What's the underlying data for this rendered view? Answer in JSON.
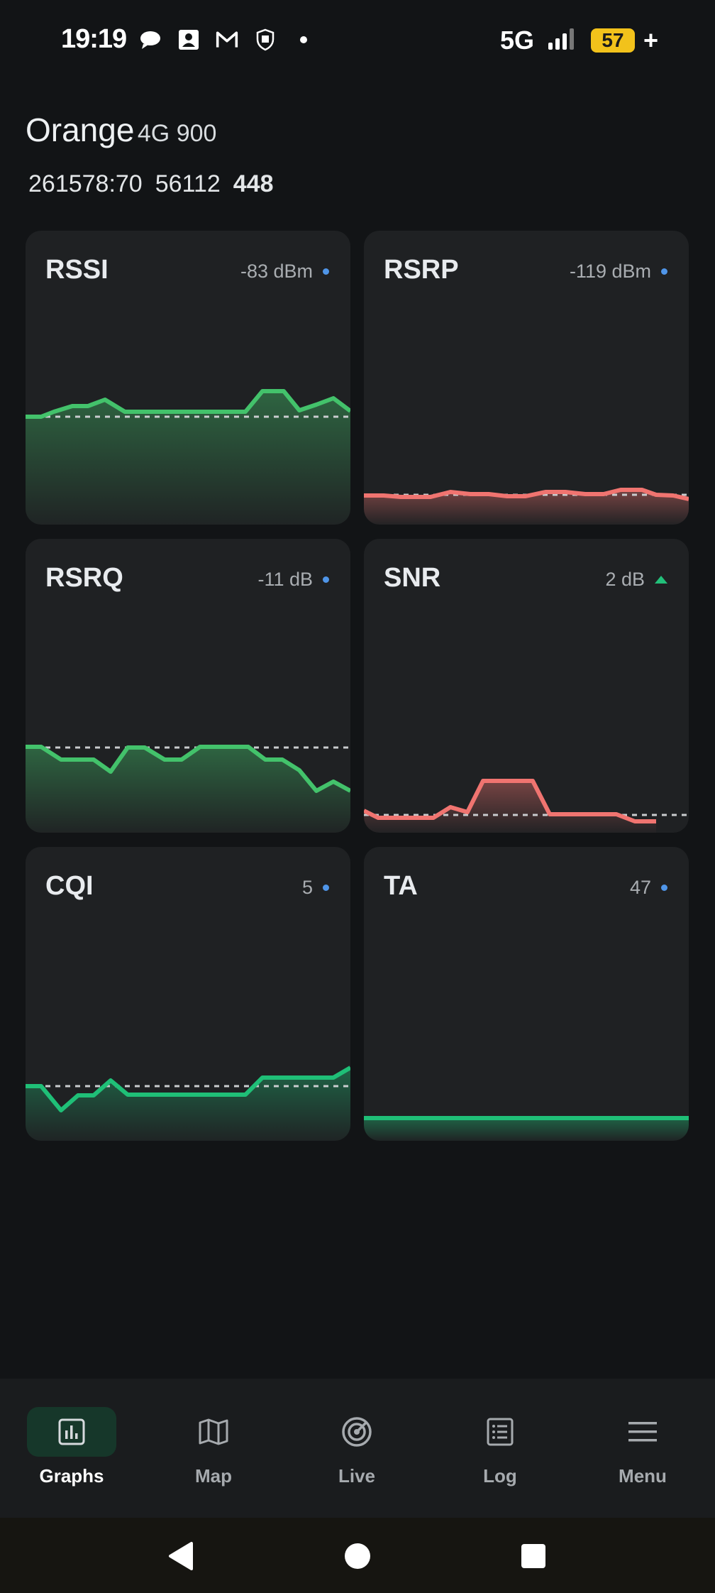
{
  "status_bar": {
    "time": "19:19",
    "network": "5G",
    "battery": "57",
    "icons": [
      "message-bubble-icon",
      "contact-card-icon",
      "gmail-icon",
      "privacy-icon",
      "dot-icon",
      "signal-icon",
      "battery-icon",
      "charging-plus-icon"
    ]
  },
  "header": {
    "carrier": "Orange",
    "tech": "4G 900",
    "cell_id": "261578:70",
    "tac": "56112",
    "pci": "448"
  },
  "cards": [
    {
      "key": "rssi",
      "title": "RSSI",
      "value": "-83 dBm",
      "indicator": "dot",
      "color": "#43c26b",
      "level": 0.35
    },
    {
      "key": "rsrp",
      "title": "RSRP",
      "value": "-119 dBm",
      "indicator": "dot",
      "color": "#f07470",
      "level": 0.1
    },
    {
      "key": "rsrq",
      "title": "RSRQ",
      "value": "-11 dB",
      "indicator": "dot",
      "color": "#43c26b",
      "level": 0.29
    },
    {
      "key": "snr",
      "title": "SNR",
      "value": "2 dB",
      "indicator": "up",
      "color": "#f07470",
      "level": 0.06
    },
    {
      "key": "cqi",
      "title": "CQI",
      "value": "5",
      "indicator": "dot",
      "color": "#1fbf77",
      "level": 0.19
    },
    {
      "key": "ta",
      "title": "TA",
      "value": "47",
      "indicator": "dot",
      "color": "#1fbf77",
      "level": 0.0
    }
  ],
  "colors": {
    "green": "#43c26b",
    "red": "#f07470",
    "accent_green": "#1fbf77",
    "dot_blue": "#4f95e8"
  },
  "nav": [
    {
      "label": "Graphs",
      "icon": "bar-chart-icon",
      "active": true
    },
    {
      "label": "Map",
      "icon": "map-icon",
      "active": false
    },
    {
      "label": "Live",
      "icon": "radar-icon",
      "active": false
    },
    {
      "label": "Log",
      "icon": "list-icon",
      "active": false
    },
    {
      "label": "Menu",
      "icon": "hamburger-menu-icon",
      "active": false
    }
  ]
}
